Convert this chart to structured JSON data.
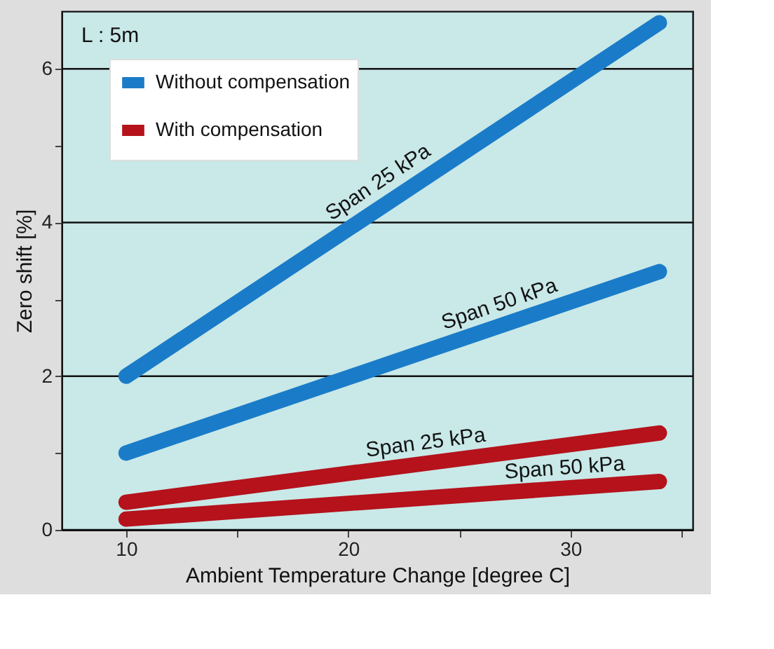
{
  "chart_data": {
    "type": "line",
    "xlabel": "Ambient Temperature Change [degree C]",
    "ylabel": "Zero shift [%]",
    "annotations": [
      "L : 5m",
      {
        "text": "Span 25 kPa",
        "x": 21.9,
        "y": 4.28
      },
      {
        "text": "Span 50 kPa",
        "x": 27.1,
        "y": 2.68
      },
      {
        "text": "Span 25 kPa",
        "x": 23.6,
        "y": 0.87
      },
      {
        "text": "Span 50 kPa",
        "x": 29.8,
        "y": 0.54
      }
    ],
    "x": [
      10,
      34
    ],
    "series": [
      {
        "name": "Without compensation",
        "color": "#1a7cc8",
        "values": [
          2.0,
          6.6
        ]
      },
      {
        "color": "#1a7cc8",
        "values": [
          1.0,
          3.36
        ]
      },
      {
        "name": "With compensation",
        "color": "#b5121b",
        "values": [
          0.36,
          1.26
        ]
      },
      {
        "color": "#b5121b",
        "values": [
          0.14,
          0.63
        ]
      }
    ],
    "xlim": [
      7.1,
      35.5
    ],
    "ylim": [
      0,
      6.75
    ],
    "xticks": [
      10,
      {
        "value": 15,
        "label": null
      },
      20,
      {
        "value": 25,
        "label": null
      },
      30,
      {
        "value": 35,
        "label": null
      }
    ],
    "yticks": [
      0,
      {
        "value": 1,
        "label": null
      },
      2,
      {
        "value": 3,
        "label": null
      },
      4,
      {
        "value": 5,
        "label": null
      },
      6
    ],
    "grid": "y",
    "legend": "top left",
    "line_style": "solid"
  }
}
